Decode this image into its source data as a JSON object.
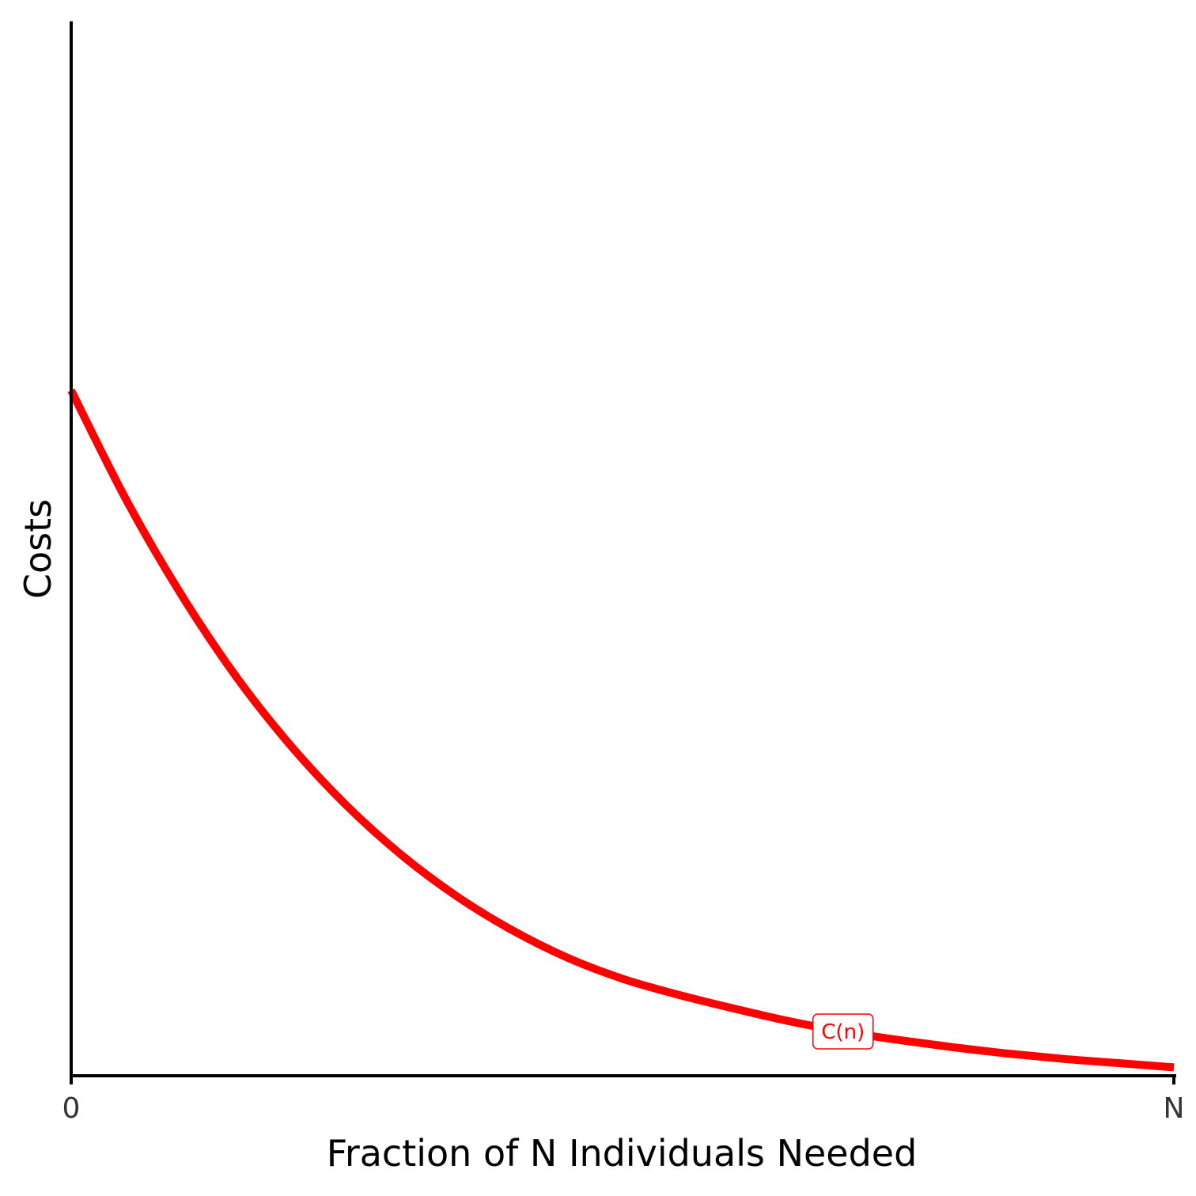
{
  "chart_data": {
    "type": "line",
    "title": "",
    "xlabel": "Fraction of N Individuals Needed",
    "ylabel": "Costs",
    "x_ticks": [
      {
        "value": 0,
        "label": "0"
      },
      {
        "value": 1,
        "label": "N"
      }
    ],
    "y_ticks": [],
    "xlim": [
      0,
      1
    ],
    "ylim": [
      0,
      10
    ],
    "grid": false,
    "legend": "none",
    "series": [
      {
        "name": "C(n)",
        "color": "#ff0000",
        "label_at_x": 0.7,
        "x": [
          0,
          0.05,
          0.1,
          0.15,
          0.2,
          0.25,
          0.3,
          0.35,
          0.4,
          0.45,
          0.5,
          0.55,
          0.6,
          0.65,
          0.7,
          0.75,
          0.8,
          0.85,
          0.9,
          0.95,
          1.0
        ],
        "y": [
          6.5,
          5.46,
          4.56,
          3.78,
          3.12,
          2.56,
          2.09,
          1.7,
          1.38,
          1.12,
          0.92,
          0.77,
          0.64,
          0.52,
          0.42,
          0.34,
          0.27,
          0.21,
          0.16,
          0.12,
          0.08
        ]
      }
    ]
  }
}
